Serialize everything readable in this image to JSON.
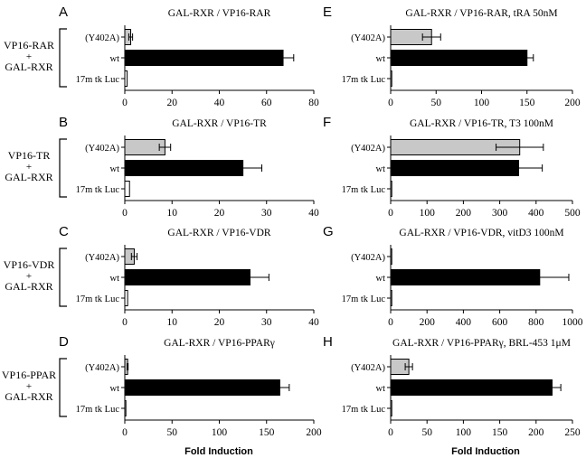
{
  "colors": {
    "mutant": "#c8c8c8",
    "wt": "#000000",
    "control": "#ffffff",
    "stroke": "#000000"
  },
  "xlabel": "Fold Induction",
  "chart_data": [
    {
      "type": "bar",
      "panel_label": "A",
      "title": "GAL-RXR / VP16-RAR",
      "group_label": [
        "VP16-RAR",
        "+",
        "GAL-RXR"
      ],
      "categories": [
        "(Y402A)",
        "wt",
        "17m tk Luc"
      ],
      "values": [
        2.5,
        67,
        1
      ],
      "errors": [
        0.8,
        4.5,
        0
      ],
      "xlim": [
        0,
        80
      ],
      "ticks": [
        "0",
        "20",
        "40",
        "60",
        "80"
      ]
    },
    {
      "type": "bar",
      "panel_label": "B",
      "title": "GAL-RXR / VP16-TR",
      "group_label": [
        "VP16-TR",
        "+",
        "GAL-RXR"
      ],
      "categories": [
        "(Y402A)",
        "wt",
        "17m tk Luc"
      ],
      "values": [
        8.5,
        25,
        1
      ],
      "errors": [
        1.2,
        4,
        0
      ],
      "xlim": [
        0,
        40
      ],
      "ticks": [
        "0",
        "10",
        "20",
        "30",
        "40"
      ]
    },
    {
      "type": "bar",
      "panel_label": "C",
      "title": "GAL-RXR / VP16-VDR",
      "group_label": [
        "VP16-VDR",
        "+",
        "GAL-RXR"
      ],
      "categories": [
        "(Y402A)",
        "wt",
        "17m tk Luc"
      ],
      "values": [
        2,
        26.5,
        0.6
      ],
      "errors": [
        0.6,
        4,
        0
      ],
      "xlim": [
        0,
        40
      ],
      "ticks": [
        "0",
        "10",
        "20",
        "30",
        "40"
      ]
    },
    {
      "type": "bar",
      "panel_label": "D",
      "title": "GAL-RXR / VP16-PPARγ",
      "group_label": [
        "VP16-PPAR",
        "+",
        "GAL-RXR"
      ],
      "categories": [
        "(Y402A)",
        "wt",
        "17m tk Luc"
      ],
      "values": [
        3,
        164,
        1
      ],
      "errors": [
        0.5,
        10,
        0
      ],
      "xlim": [
        0,
        200
      ],
      "ticks": [
        "0",
        "50",
        "100",
        "150",
        "200"
      ]
    },
    {
      "type": "bar",
      "panel_label": "E",
      "title": "GAL-RXR / VP16-RAR, tRA 50nM",
      "group_label": [],
      "categories": [
        "(Y402A)",
        "wt",
        "17m tk Luc"
      ],
      "values": [
        45,
        150,
        1
      ],
      "errors": [
        10,
        7,
        0
      ],
      "xlim": [
        0,
        200
      ],
      "ticks": [
        "0",
        "50",
        "100",
        "150",
        "200"
      ]
    },
    {
      "type": "bar",
      "panel_label": "F",
      "title": "GAL-RXR / VP16-TR, T3 100nM",
      "group_label": [],
      "categories": [
        "(Y402A)",
        "wt",
        "17m tk Luc"
      ],
      "values": [
        355,
        352,
        1
      ],
      "errors": [
        65,
        65,
        0
      ],
      "xlim": [
        0,
        500
      ],
      "ticks": [
        "0",
        "100",
        "200",
        "300",
        "400",
        "500"
      ]
    },
    {
      "type": "bar",
      "panel_label": "G",
      "title": "GAL-RXR / VP16-VDR, vitD3 100nM",
      "group_label": [],
      "categories": [
        "(Y402A)",
        "wt",
        "17m tk Luc"
      ],
      "values": [
        2,
        820,
        1
      ],
      "errors": [
        0,
        160,
        0
      ],
      "xlim": [
        0,
        1000
      ],
      "ticks": [
        "0",
        "200",
        "400",
        "600",
        "800",
        "1000"
      ]
    },
    {
      "type": "bar",
      "panel_label": "H",
      "title": "GAL-RXR / VP16-PPARγ, BRL-453 1μM",
      "group_label": [],
      "categories": [
        "(Y402A)",
        "wt",
        "17m tk Luc"
      ],
      "values": [
        25,
        222,
        1
      ],
      "errors": [
        5,
        12,
        0
      ],
      "xlim": [
        0,
        250
      ],
      "ticks": [
        "0",
        "50",
        "100",
        "150",
        "200",
        "250"
      ]
    }
  ]
}
